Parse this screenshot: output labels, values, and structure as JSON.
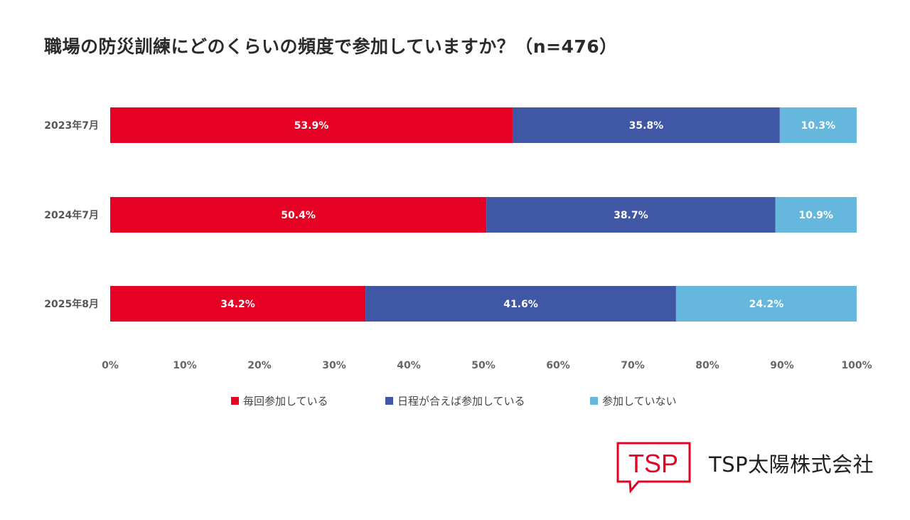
{
  "chart_data": {
    "type": "bar",
    "orientation": "horizontal",
    "stacked": true,
    "title": "職場の防災訓練にどのくらいの頻度で参加していますか？（n=476）",
    "categories": [
      "2023年7月",
      "2024年7月",
      "2025年8月"
    ],
    "series": [
      {
        "name": "毎回参加している",
        "color": "#e60023",
        "values": [
          53.9,
          50.4,
          34.2
        ],
        "labels": [
          "53.9%",
          "50.4%",
          "34.2%"
        ]
      },
      {
        "name": "日程が合えば参加している",
        "color": "#3f57a5",
        "values": [
          35.8,
          38.7,
          41.6
        ],
        "labels": [
          "35.8%",
          "38.7%",
          "41.6%"
        ]
      },
      {
        "name": "参加していない",
        "color": "#66b7de",
        "values": [
          10.3,
          10.9,
          24.2
        ],
        "labels": [
          "10.3%",
          "10.9%",
          "24.2%"
        ]
      }
    ],
    "xlim": [
      0,
      100
    ],
    "xticks": [
      0,
      10,
      20,
      30,
      40,
      50,
      60,
      70,
      80,
      90,
      100
    ],
    "xtick_labels": [
      "0%",
      "10%",
      "20%",
      "30%",
      "40%",
      "50%",
      "60%",
      "70%",
      "80%",
      "90%",
      "100%"
    ],
    "xlabel": "",
    "ylabel": "",
    "grid": false,
    "legend_position": "bottom"
  },
  "branding": {
    "logo_text": "TSP",
    "company_name": "TSP太陽株式会社",
    "logo_color": "#e60023"
  }
}
